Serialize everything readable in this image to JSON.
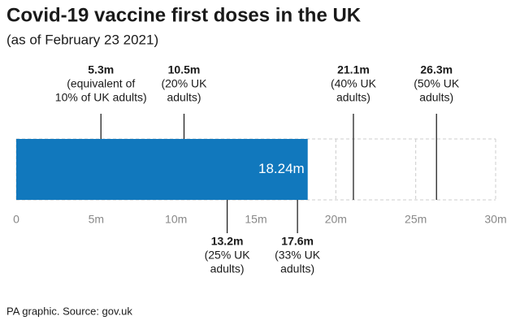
{
  "chart_data": {
    "type": "bar",
    "orientation": "horizontal",
    "title": "Covid-19 vaccine first doses in the UK",
    "subtitle": "(as of February 23 2021)",
    "source": "PA graphic. Source: gov.uk",
    "values": [
      18.24
    ],
    "value_labels": [
      "18.24m"
    ],
    "color": "#1178bd",
    "xlim": [
      0,
      30
    ],
    "xticks": [
      0,
      {
        "value": 5,
        "label": "5m"
      },
      {
        "value": 10,
        "label": "10m"
      },
      {
        "value": 15,
        "label": "15m"
      },
      {
        "value": 20,
        "label": "20m"
      },
      {
        "value": 25,
        "label": "25m"
      },
      {
        "value": 30,
        "label": "30m"
      }
    ],
    "grid": true,
    "annotations_above": [
      {
        "value": 5.3,
        "label": "5.3m",
        "lines": [
          "(equivalent of",
          "10% of UK adults)"
        ]
      },
      {
        "value": 10.5,
        "label": "10.5m",
        "lines": [
          "(20% UK",
          "adults)"
        ]
      },
      {
        "value": 21.1,
        "label": "21.1m",
        "lines": [
          "(40% UK",
          "adults)"
        ]
      },
      {
        "value": 26.3,
        "label": "26.3m",
        "lines": [
          "(50% UK",
          "adults)"
        ]
      }
    ],
    "annotations_below": [
      {
        "value": 13.2,
        "label": "13.2m",
        "lines": [
          "(25% UK",
          "adults)"
        ]
      },
      {
        "value": 17.6,
        "label": "17.6m",
        "lines": [
          "(33% UK",
          "adults)"
        ]
      }
    ]
  }
}
